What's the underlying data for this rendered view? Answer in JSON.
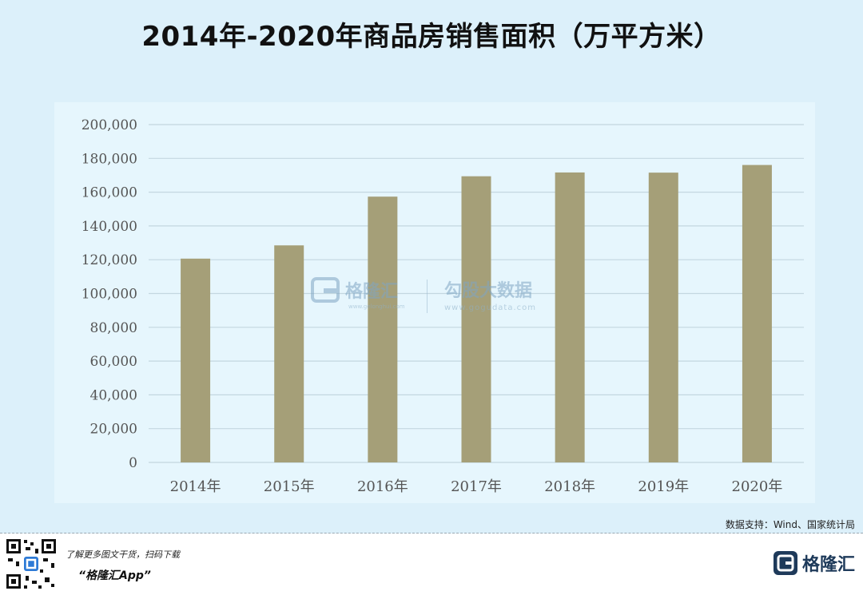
{
  "header": {
    "title": "2014年-2020年商品房销售面积（万平方米）"
  },
  "chart_data": {
    "type": "bar",
    "title": "2014年-2020年商品房销售面积（万平方米）",
    "xlabel": "",
    "ylabel": "",
    "categories": [
      "2014年",
      "2015年",
      "2016年",
      "2017年",
      "2018年",
      "2019年",
      "2020年"
    ],
    "values": [
      120649,
      128495,
      157349,
      169408,
      171654,
      171558,
      176086
    ],
    "ylim": [
      0,
      200000
    ],
    "yticks": [
      "0",
      "20,000",
      "40,000",
      "60,000",
      "80,000",
      "100,000",
      "120,000",
      "140,000",
      "160,000",
      "180,000",
      "200,000"
    ],
    "grid": true,
    "bar_color": "#a59f78"
  },
  "watermark": {
    "brand": "格隆汇",
    "brand_url": "www.gelonghui.com",
    "product": "勾股大数据",
    "product_url": "www.gogudata.com"
  },
  "source": "数据支持：Wind、国家统计局",
  "footer": {
    "line1": "了解更多图文干货，扫码下载",
    "line2": "“格隆汇App”",
    "brand": "格隆汇"
  },
  "colors": {
    "background": "#dcf0fa",
    "grid": "#c3d7e0",
    "accent": "#1e3a5a"
  }
}
